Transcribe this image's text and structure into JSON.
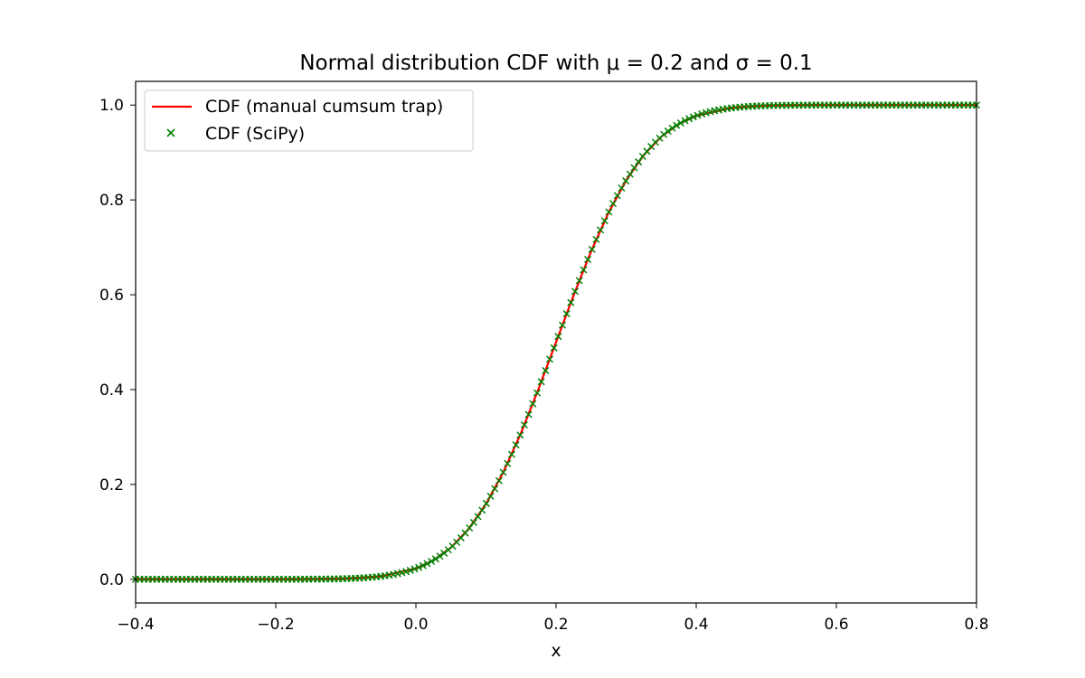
{
  "chart_data": {
    "type": "line",
    "title": "Normal distribution CDF with μ = 0.2 and σ = 0.1",
    "xlabel": "x",
    "ylabel": "",
    "xlim": [
      -0.4,
      0.8
    ],
    "ylim": [
      -0.05,
      1.05
    ],
    "xticks": [
      -0.4,
      -0.2,
      0.0,
      0.2,
      0.4,
      0.6,
      0.8
    ],
    "xtick_labels": [
      "−0.4",
      "−0.2",
      "0.0",
      "0.2",
      "0.4",
      "0.6",
      "0.8"
    ],
    "yticks": [
      0.0,
      0.2,
      0.4,
      0.6,
      0.8,
      1.0
    ],
    "ytick_labels": [
      "0.0",
      "0.2",
      "0.4",
      "0.6",
      "0.8",
      "1.0"
    ],
    "grid": false,
    "legend_position": "top-left",
    "series": [
      {
        "name": "CDF (manual cumsum trap)",
        "style": "line",
        "color": "#ff0000",
        "x": [
          -0.4,
          -0.3,
          -0.2,
          -0.15,
          -0.1,
          -0.05,
          0.0,
          0.025,
          0.05,
          0.075,
          0.1,
          0.125,
          0.15,
          0.175,
          0.2,
          0.225,
          0.25,
          0.275,
          0.3,
          0.325,
          0.35,
          0.375,
          0.4,
          0.45,
          0.5,
          0.55,
          0.6,
          0.7,
          0.8
        ],
        "y": [
          0.0,
          0.0,
          0.0,
          0.0002,
          0.0013,
          0.0062,
          0.0228,
          0.0401,
          0.0668,
          0.1056,
          0.1587,
          0.2266,
          0.3085,
          0.4013,
          0.5,
          0.5987,
          0.6915,
          0.7734,
          0.8413,
          0.8944,
          0.9332,
          0.9599,
          0.9772,
          0.9938,
          0.9987,
          0.9998,
          1.0,
          1.0,
          1.0
        ]
      },
      {
        "name": "CDF (SciPy)",
        "style": "marker-x",
        "color": "#008000",
        "x_start": -0.4,
        "x_end": 0.8,
        "count": 200,
        "mu": 0.2,
        "sigma": 0.1
      }
    ]
  }
}
